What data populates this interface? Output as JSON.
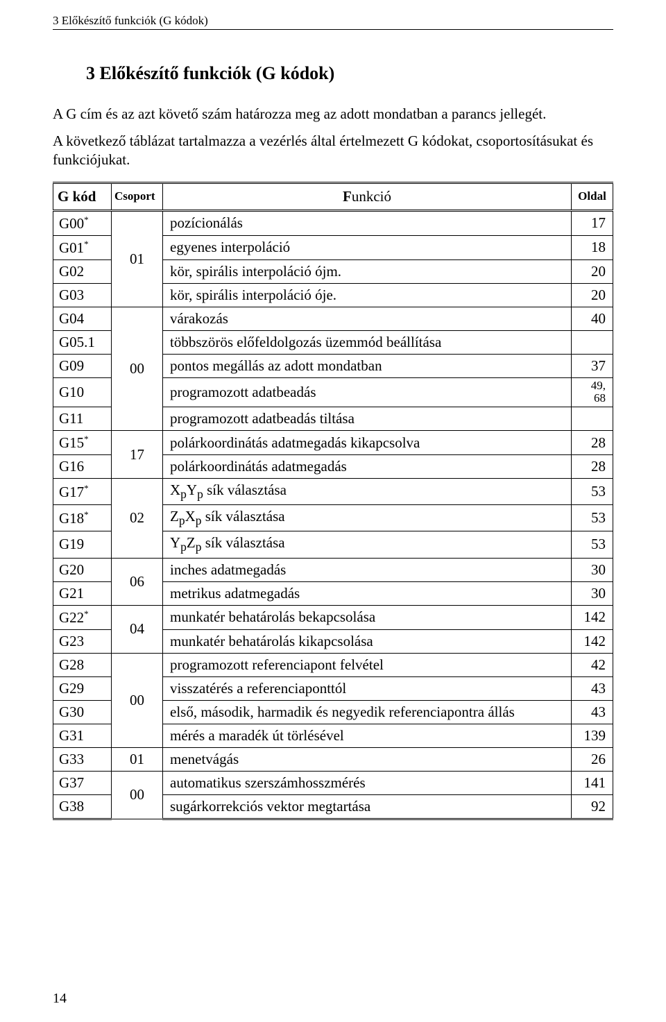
{
  "running_head": "3 Előkészítő funkciók (G kódok)",
  "heading": "3 Előkészítő funkciók (G kódok)",
  "para1": "A G cím és az azt követő szám határozza meg az adott mondatban a parancs jellegét.",
  "para2": "A következő táblázat tartalmazza a vezérlés által értelmezett G kódokat, csoportosításukat és funkciójukat.",
  "header": {
    "g": "G kód",
    "group": "Csoport",
    "func_initial": "F",
    "func_rest": "unkció",
    "page_initial": "O",
    "page_rest": "ldal"
  },
  "rows": [
    {
      "g": "G00",
      "sup": "*",
      "fn": "pozícionálás",
      "pg": "17"
    },
    {
      "g": "G01",
      "sup": "*",
      "fn": "egyenes interpoláció",
      "pg": "18"
    },
    {
      "g": "G02",
      "fn": "kör, spirális interpoláció ójm.",
      "pg": "20"
    },
    {
      "g": "G03",
      "fn": "kör, spirális interpoláció óje.",
      "pg": "20"
    },
    {
      "g": "G04",
      "fn": "várakozás",
      "pg": "40"
    },
    {
      "g": "G05.1",
      "fn": "többszörös előfeldolgozás üzemmód beállítása",
      "pg": ""
    },
    {
      "g": "G09",
      "fn": "pontos megállás az adott mondatban",
      "pg": "37"
    },
    {
      "g": "G10",
      "fn": "programozott adatbeadás",
      "pg2": "49,\n68"
    },
    {
      "g": "G11",
      "fn": "programozott adatbeadás tiltása",
      "pg": ""
    },
    {
      "g": "G15",
      "sup": "*",
      "fn": "polárkoordinátás adatmegadás kikapcsolva",
      "pg": "28"
    },
    {
      "g": "G16",
      "fn": "polárkoordinátás adatmegadás",
      "pg": "28"
    },
    {
      "g": "G17",
      "sup": "*",
      "fn": "XpYp sík választása",
      "pg": "53"
    },
    {
      "g": "G18",
      "sup": "*",
      "fn": "ZpXp sík választása",
      "pg": "53"
    },
    {
      "g": "G19",
      "fn": "YpZp sík választása",
      "pg": "53"
    },
    {
      "g": "G20",
      "fn": "inches adatmegadás",
      "pg": "30"
    },
    {
      "g": "G21",
      "fn": "metrikus adatmegadás",
      "pg": "30"
    },
    {
      "g": "G22",
      "sup": "*",
      "fn": "munkatér behatárolás bekapcsolása",
      "pg": "142"
    },
    {
      "g": "G23",
      "fn": "munkatér behatárolás kikapcsolása",
      "pg": "142"
    },
    {
      "g": "G28",
      "fn": "programozott referenciapont felvétel",
      "pg": "42"
    },
    {
      "g": "G29",
      "fn": "visszatérés a referenciaponttól",
      "pg": "43"
    },
    {
      "g": "G30",
      "fn": "első, második, harmadik és negyedik referenciapontra állás",
      "pg": "43"
    },
    {
      "g": "G31",
      "fn": "mérés a maradék út törlésével",
      "pg": "139"
    },
    {
      "g": "G33",
      "fn": "menetvágás",
      "pg": "26"
    },
    {
      "g": "G37",
      "fn": "automatikus szerszámhosszmérés",
      "pg": "141"
    },
    {
      "g": "G38",
      "fn": "sugárkorrekciós vektor megtartása",
      "pg": "92"
    }
  ],
  "groups": {
    "g01": "01",
    "g00a": "00",
    "g17": "17",
    "g02": "02",
    "g06": "06",
    "g04": "04",
    "g00b": "00",
    "g01b": "01",
    "g00c": "00"
  },
  "fn_plane": {
    "xy_a": "X",
    "xy_sub": "p",
    "xy_b": "Y",
    "xy_sub2": "p",
    "xy_tail": " sík választása",
    "zx_a": "Z",
    "zx_b": "X",
    "yz_a": "Y",
    "yz_b": "Z"
  },
  "page_number": "14"
}
